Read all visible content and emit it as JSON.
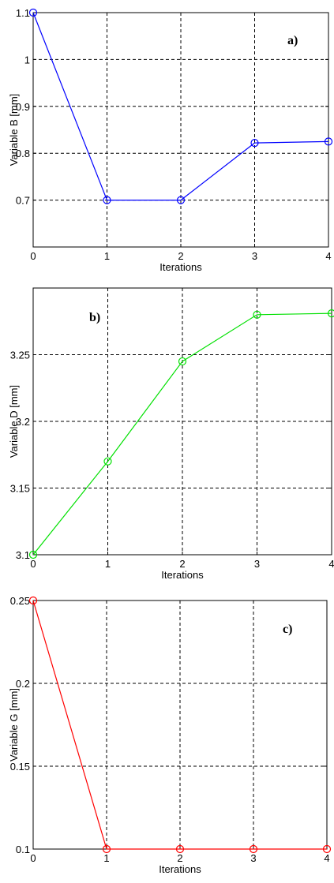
{
  "chart_data": [
    {
      "type": "line",
      "panel_label": "a)",
      "xlabel": "Iterations",
      "ylabel": "Variable B [mm]",
      "x": [
        0,
        1,
        2,
        3,
        4
      ],
      "xticks": [
        "0",
        "1",
        "2",
        "3",
        "4"
      ],
      "yticks": [
        "0.7",
        "0.8",
        "0.9",
        "1",
        "1.1"
      ],
      "ytick_values": [
        0.7,
        0.8,
        0.9,
        1.0,
        1.1
      ],
      "xlim": [
        0,
        4
      ],
      "ylim": [
        0.6,
        1.1
      ],
      "grid": true,
      "series": [
        {
          "values": [
            1.1,
            0.7,
            0.7,
            0.822,
            0.825
          ],
          "color": "#0000ff",
          "marker": "circle"
        }
      ]
    },
    {
      "type": "line",
      "panel_label": "b)",
      "xlabel": "Iterations",
      "ylabel": "Variable D [mm]",
      "x": [
        0,
        1,
        2,
        3,
        4
      ],
      "xticks": [
        "0",
        "1",
        "2",
        "3",
        "4"
      ],
      "yticks": [
        "3.1",
        "3.15",
        "3.2",
        "3.25"
      ],
      "ytick_values": [
        3.1,
        3.15,
        3.2,
        3.25
      ],
      "xlim": [
        0,
        4
      ],
      "ylim": [
        3.1,
        3.3
      ],
      "grid": true,
      "series": [
        {
          "values": [
            3.1,
            3.17,
            3.245,
            3.28,
            3.281
          ],
          "color": "#00e000",
          "marker": "circle"
        }
      ]
    },
    {
      "type": "line",
      "panel_label": "c)",
      "xlabel": "Iterations",
      "ylabel": "Variable G [mm]",
      "x": [
        0,
        1,
        2,
        3,
        4
      ],
      "xticks": [
        "0",
        "1",
        "2",
        "3",
        "4"
      ],
      "yticks": [
        "0.1",
        "0.15",
        "0.2",
        "0.25"
      ],
      "ytick_values": [
        0.1,
        0.15,
        0.2,
        0.25
      ],
      "xlim": [
        0,
        4
      ],
      "ylim": [
        0.1,
        0.25
      ],
      "grid": true,
      "series": [
        {
          "values": [
            0.25,
            0.1,
            0.1,
            0.1,
            0.1
          ],
          "color": "#ff0000",
          "marker": "circle"
        }
      ]
    }
  ]
}
